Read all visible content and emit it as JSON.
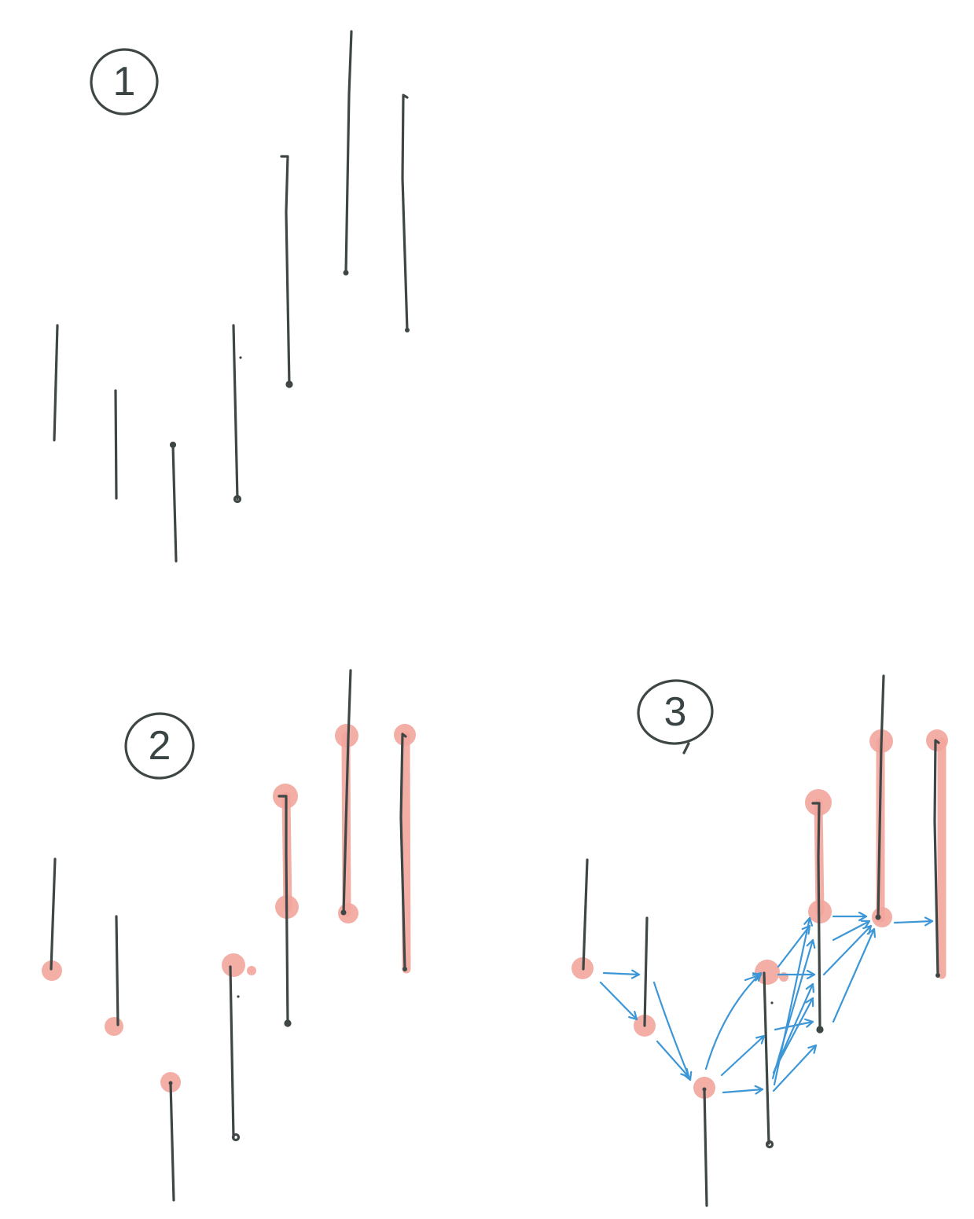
{
  "steps": [
    {
      "label": "1"
    },
    {
      "label": "2"
    },
    {
      "label": "3"
    }
  ],
  "colors": {
    "ink": "#3f4646",
    "highlight": "#f2a59c",
    "arrow": "#3d97d6"
  }
}
